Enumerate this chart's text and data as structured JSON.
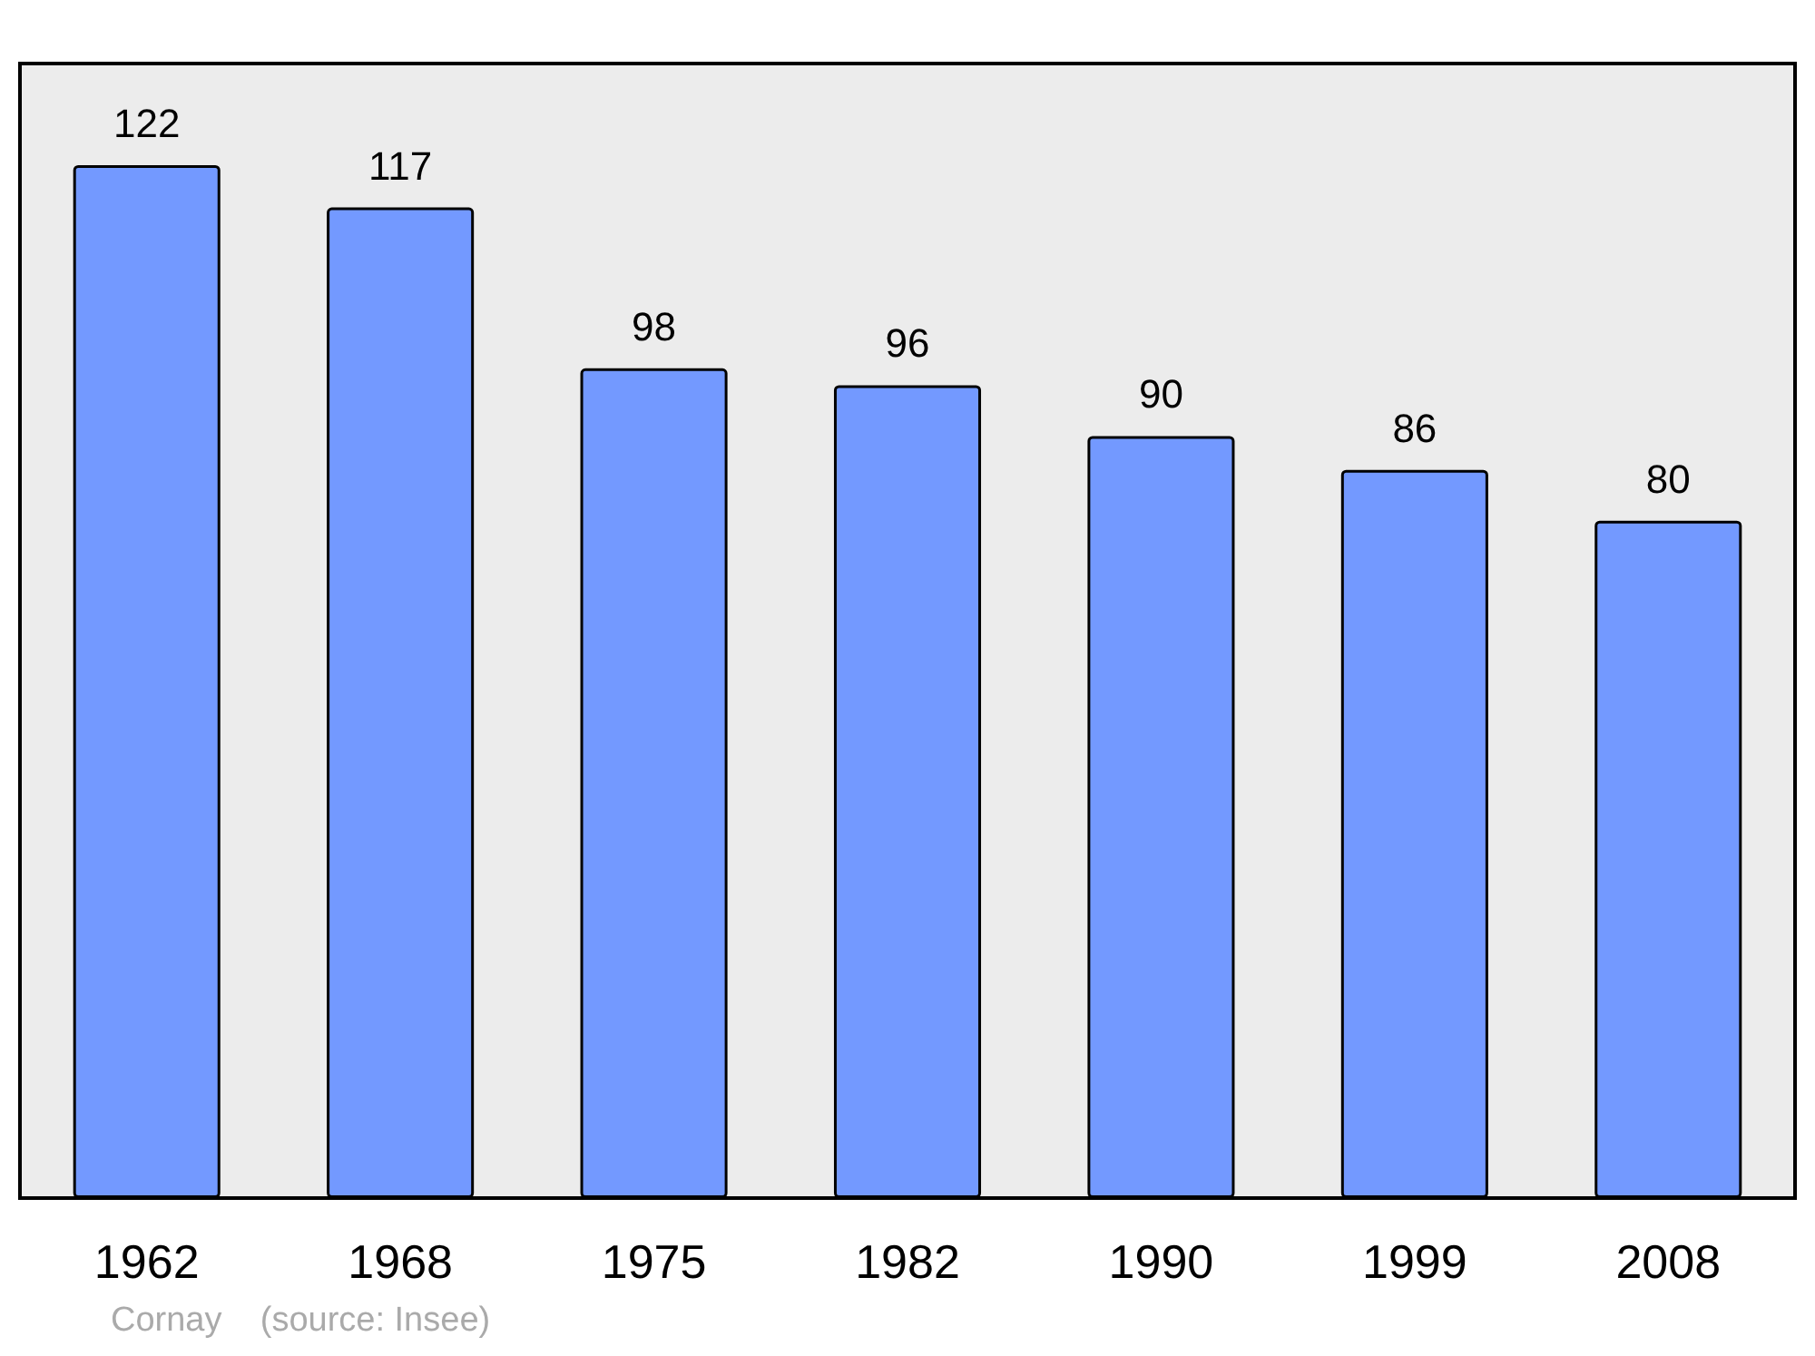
{
  "chart_data": {
    "type": "bar",
    "categories": [
      "1962",
      "1968",
      "1975",
      "1982",
      "1990",
      "1999",
      "2008"
    ],
    "values": [
      122,
      117,
      98,
      96,
      90,
      86,
      80
    ],
    "color": "#7399ff",
    "data_labels": true,
    "ylim": [
      0,
      134
    ],
    "tick_labels": "x",
    "annotations": [
      "Cornay    (source: Insee)"
    ]
  }
}
